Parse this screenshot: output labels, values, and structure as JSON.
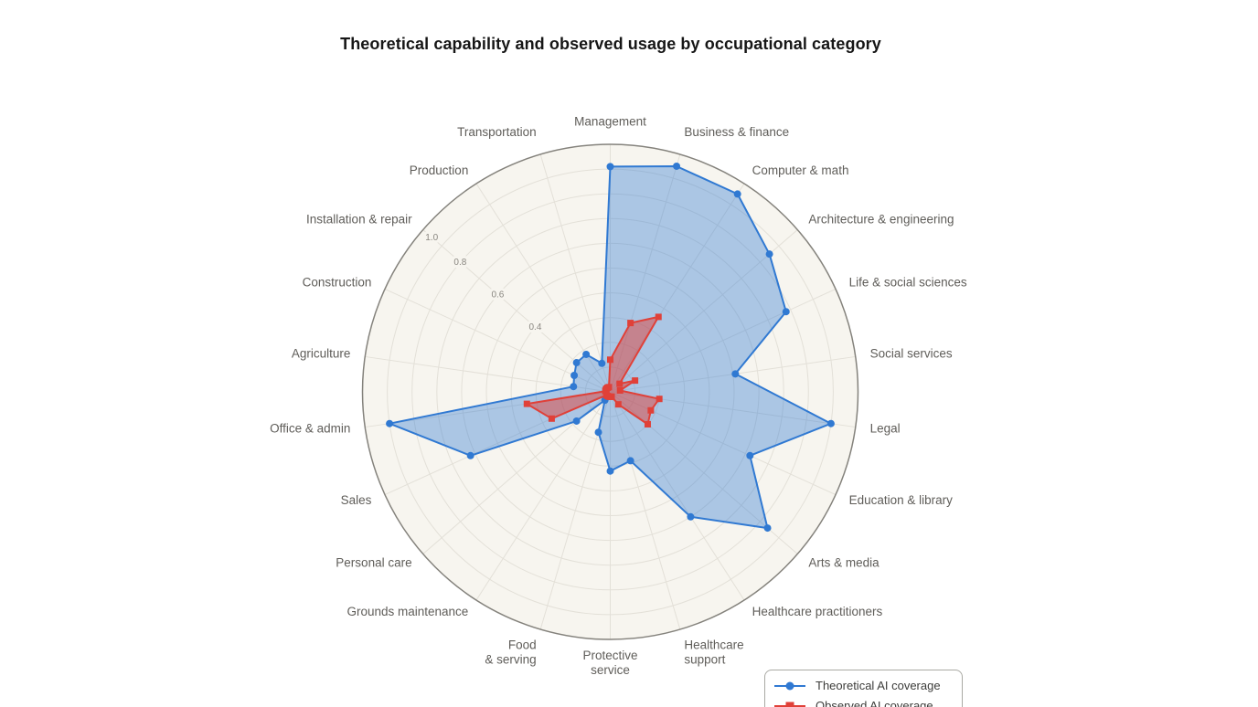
{
  "title": "Theoretical capability and observed usage by occupational category",
  "legend": {
    "position": "bottom-right",
    "items": [
      {
        "label": "Theoretical AI coverage",
        "marker": "circle"
      },
      {
        "label": "Observed AI coverage",
        "marker": "square"
      }
    ]
  },
  "chart_data": {
    "type": "radar",
    "title": "Theoretical capability and observed usage by occupational category",
    "categories": [
      "Management",
      "Business & finance",
      "Computer & math",
      "Architecture & engineering",
      "Life & social sciences",
      "Social services",
      "Legal",
      "Education & library",
      "Arts & media",
      "Healthcare practitioners",
      "Healthcare support",
      "Protective service",
      "Food & serving",
      "Grounds maintenance",
      "Personal care",
      "Sales",
      "Office & admin",
      "Agriculture",
      "Construction",
      "Installation & repair",
      "Production",
      "Transportation"
    ],
    "series": [
      {
        "name": "Theoretical AI coverage",
        "color": "#3079d2",
        "marker": "circle",
        "fill_opacity": 0.38,
        "values": [
          0.91,
          0.95,
          0.95,
          0.85,
          0.78,
          0.51,
          0.9,
          0.62,
          0.84,
          0.6,
          0.29,
          0.32,
          0.17,
          0.04,
          0.18,
          0.62,
          0.9,
          0.15,
          0.16,
          0.18,
          0.18,
          0.12
        ]
      },
      {
        "name": "Observed AI coverage",
        "color": "#e04038",
        "marker": "square",
        "fill_opacity": 0.5,
        "values": [
          0.13,
          0.29,
          0.36,
          0.05,
          0.11,
          0.04,
          0.2,
          0.18,
          0.2,
          0.06,
          0.02,
          0.02,
          0.02,
          0.02,
          0.02,
          0.26,
          0.34,
          0.02,
          0.02,
          0.02,
          0.02,
          0.02
        ]
      }
    ],
    "r_min": 0,
    "r_max": 1.0,
    "r_ticks_shown": [
      0.4,
      0.6,
      0.8,
      1.0
    ],
    "r_grid_step": 0.1,
    "start_angle_deg": 90,
    "direction": "clockwise",
    "tick_label_angle_deg": 139.2,
    "grid": true,
    "legend_position": "bottom-right",
    "style": {
      "plot_background": "#f7f5ef",
      "page_background": "#ffffff",
      "grid_color": "#e3e0d8",
      "outline_color": "#84827c",
      "category_label_color": "#5f5d59",
      "tick_label_color": "#8a8781",
      "title_color": "#161616"
    }
  }
}
